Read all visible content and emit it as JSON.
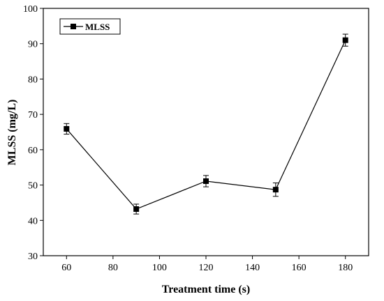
{
  "chart_data": {
    "type": "line",
    "title": "",
    "xlabel": "Treatment time (s)",
    "ylabel": "MLSS (mg/L)",
    "xlim": [
      50,
      190
    ],
    "ylim": [
      30,
      100
    ],
    "xticks": [
      60,
      80,
      100,
      120,
      140,
      160,
      180
    ],
    "yticks": [
      30,
      40,
      50,
      60,
      70,
      80,
      90,
      100
    ],
    "grid": false,
    "legend_position": "top-left",
    "series": [
      {
        "name": "MLSS",
        "marker": "square",
        "color": "#000000",
        "x": [
          60,
          90,
          120,
          150,
          180
        ],
        "y": [
          65.9,
          43.2,
          51.1,
          48.7,
          91.0
        ],
        "error": [
          1.5,
          1.4,
          1.6,
          1.9,
          1.7
        ]
      }
    ]
  }
}
